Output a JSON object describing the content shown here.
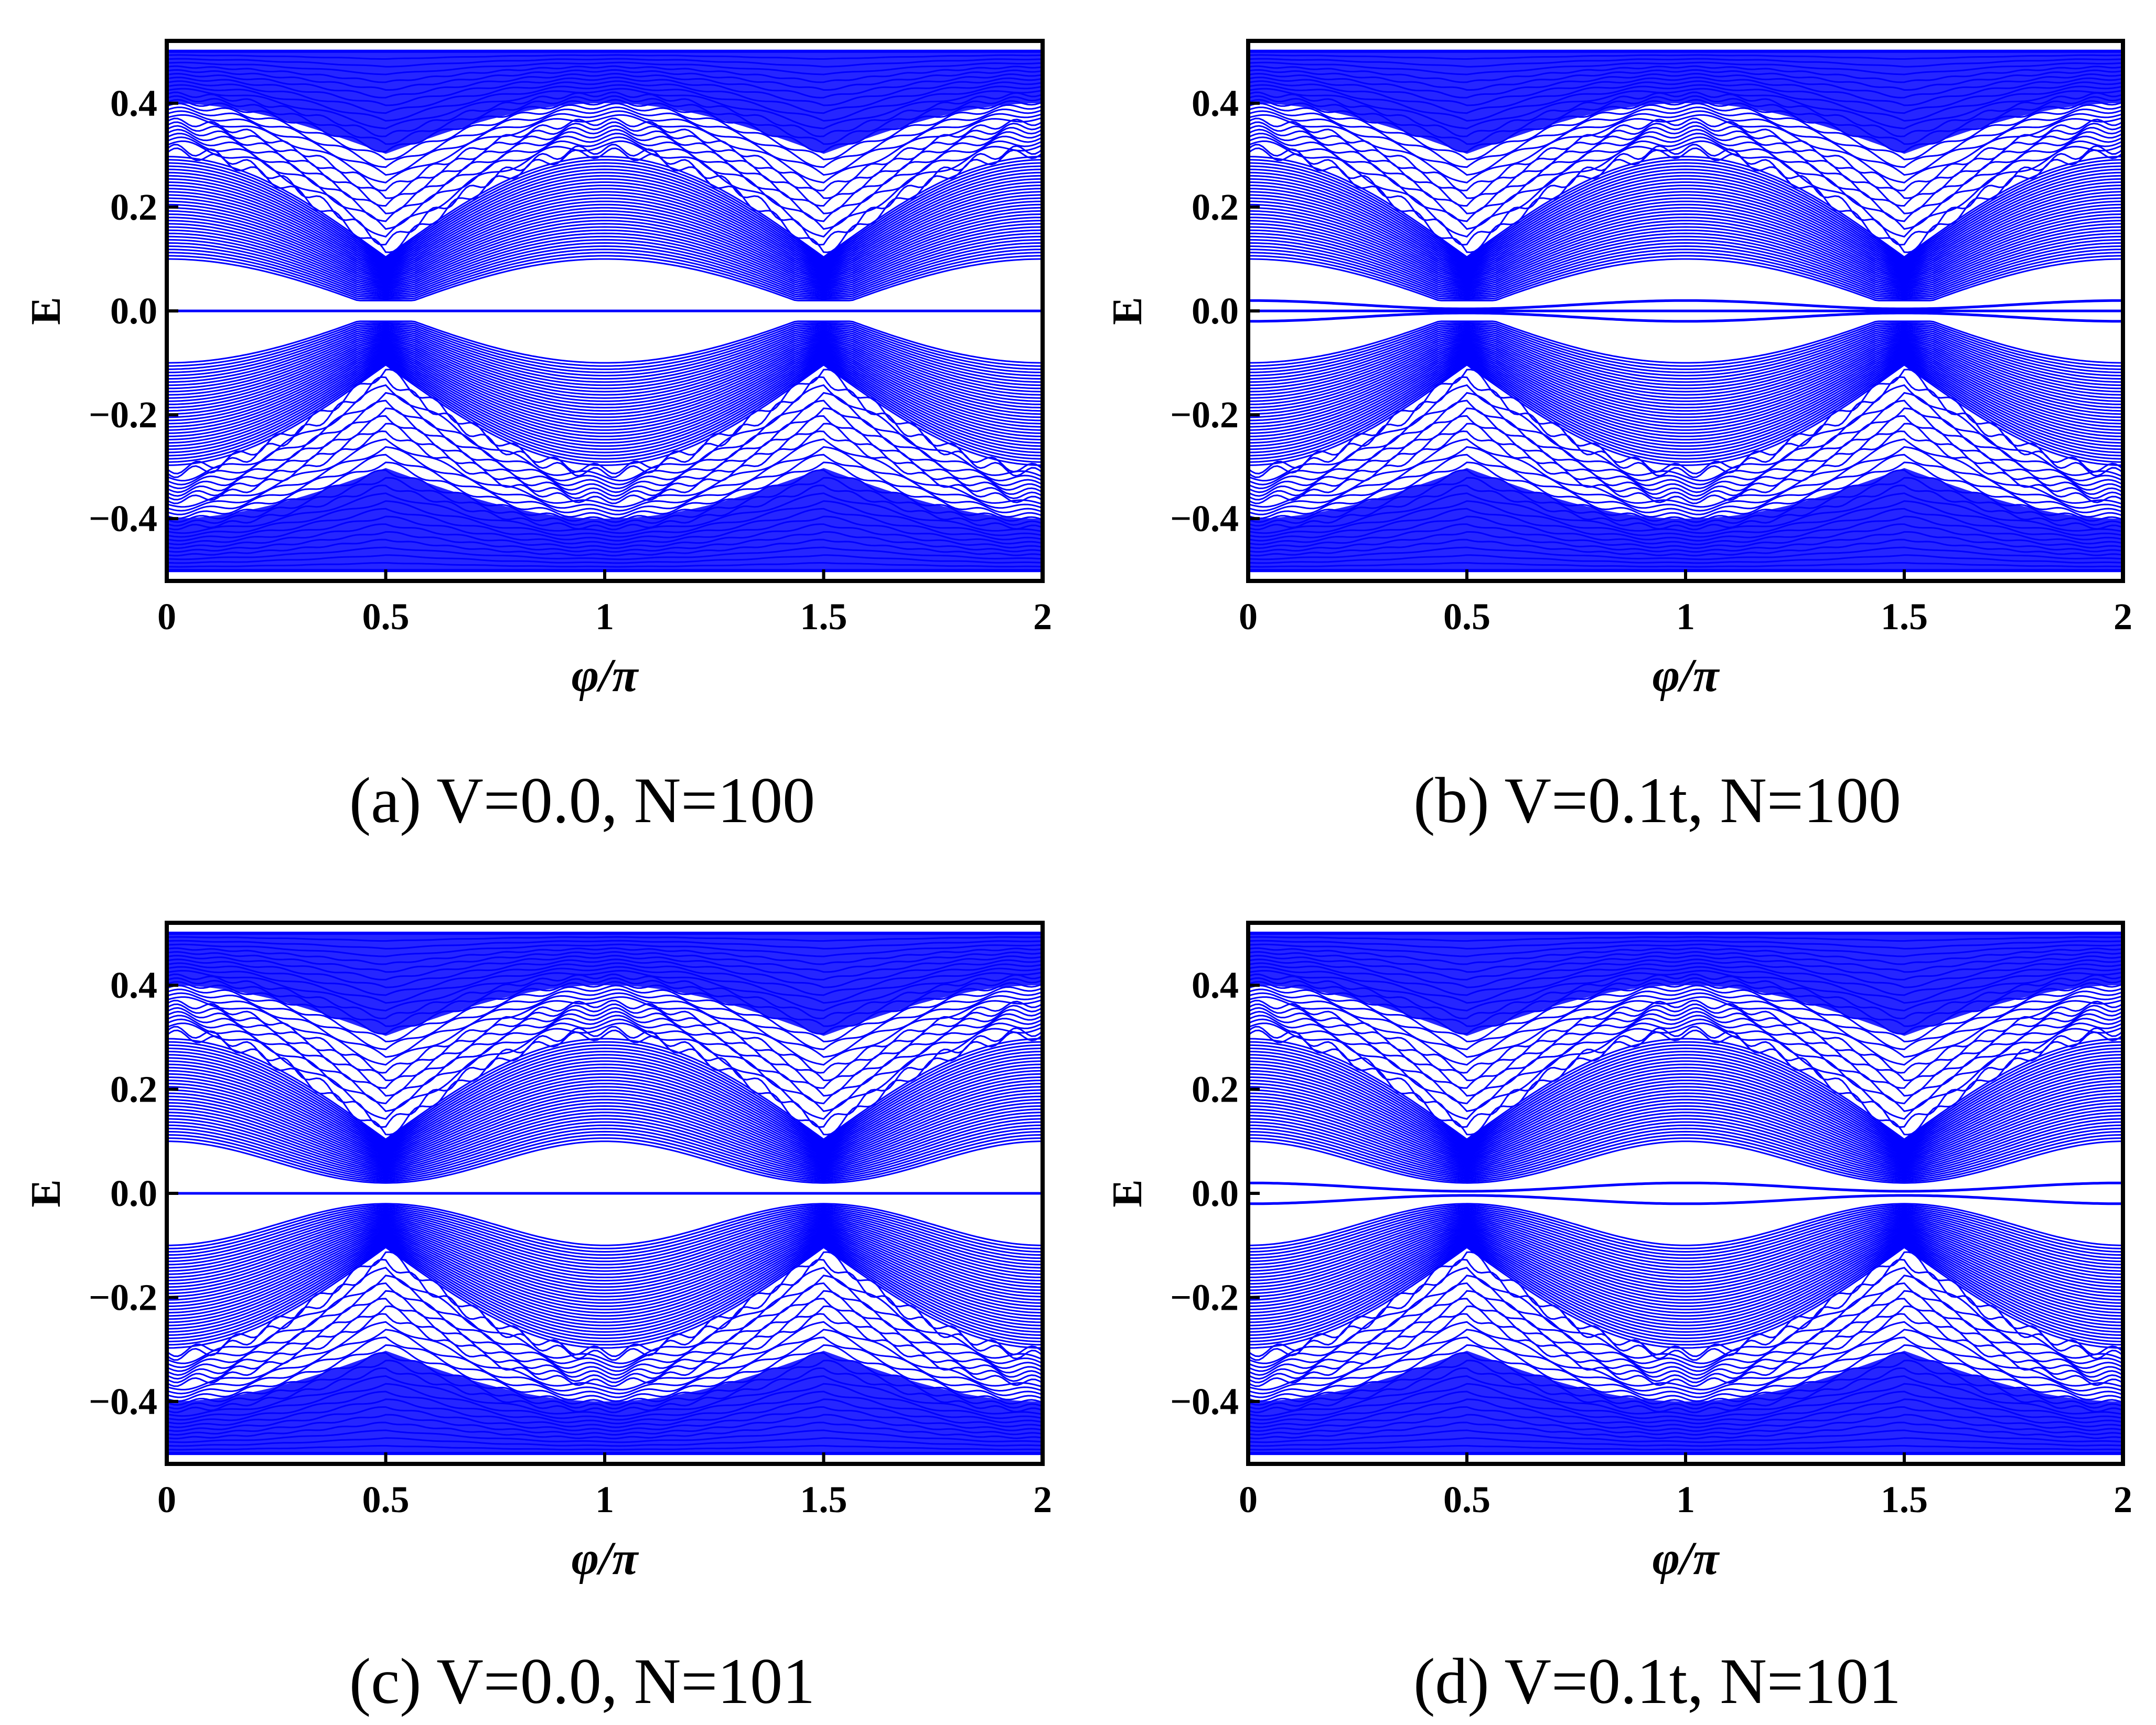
{
  "colors": {
    "curve": "#0000ff",
    "frame": "#000000",
    "background": "#ffffff"
  },
  "chart_data": [
    {
      "panel": "a",
      "type": "line",
      "caption": "(a) V=0.0, N=100",
      "xlabel": "φ/π",
      "ylabel": "E",
      "xlim": [
        0,
        2
      ],
      "ylim": [
        -0.52,
        0.52
      ],
      "xticks": [
        0,
        0.5,
        1,
        1.5,
        2
      ],
      "xtick_labels": [
        "0",
        "0.5",
        "1",
        "1.5",
        "2"
      ],
      "yticks": [
        0.4,
        0.2,
        0.0,
        -0.2,
        -0.4
      ],
      "ytick_labels": [
        "0.4",
        "0.2",
        "0.0",
        "−0.2",
        "−0.4"
      ],
      "params": {
        "V": 0.0,
        "N": 100,
        "edge_states": [
          0.0
        ],
        "gap_scale": 1.0,
        "gap_half": false
      },
      "band_edge": {
        "inner_max": 0.1,
        "inner_min": 0.02,
        "outer_max": 0.3,
        "top": 0.5,
        "crossings": [
          0.5,
          1.5
        ]
      }
    },
    {
      "panel": "b",
      "type": "line",
      "caption": "(b) V=0.1t, N=100",
      "xlabel": "φ/π",
      "ylabel": "E",
      "xlim": [
        0,
        2
      ],
      "ylim": [
        -0.52,
        0.52
      ],
      "xticks": [
        0,
        0.5,
        1,
        1.5,
        2
      ],
      "xtick_labels": [
        "0",
        "0.5",
        "1",
        "1.5",
        "2"
      ],
      "yticks": [
        0.4,
        0.2,
        0.0,
        -0.2,
        -0.4
      ],
      "ytick_labels": [
        "0.4",
        "0.2",
        "0.0",
        "−0.2",
        "−0.4"
      ],
      "params": {
        "V": 0.1,
        "N": 100,
        "edge_states": [
          0.02,
          -0.02,
          0.0
        ],
        "gap_scale": 1.0,
        "gap_half": false
      },
      "band_edge": {
        "inner_max": 0.1,
        "inner_min": 0.02,
        "outer_max": 0.3,
        "top": 0.5,
        "crossings": [
          0.5,
          1.5
        ]
      }
    },
    {
      "panel": "c",
      "type": "line",
      "caption": "(c) V=0.0, N=101",
      "xlabel": "φ/π",
      "ylabel": "E",
      "xlim": [
        0,
        2
      ],
      "ylim": [
        -0.52,
        0.52
      ],
      "xticks": [
        0,
        0.5,
        1,
        1.5,
        2
      ],
      "xtick_labels": [
        "0",
        "0.5",
        "1",
        "1.5",
        "2"
      ],
      "yticks": [
        0.4,
        0.2,
        0.0,
        -0.2,
        -0.4
      ],
      "ytick_labels": [
        "0.4",
        "0.2",
        "0.0",
        "−0.2",
        "−0.4"
      ],
      "params": {
        "V": 0.0,
        "N": 101,
        "edge_states": [
          0.0
        ],
        "gap_scale": 1.0,
        "gap_half": true
      },
      "band_edge": {
        "inner_max": 0.1,
        "inner_min": 0.02,
        "outer_max": 0.3,
        "top": 0.5,
        "crossings": [
          0.5,
          1.5
        ]
      }
    },
    {
      "panel": "d",
      "type": "line",
      "caption": "(d) V=0.1t, N=101",
      "xlabel": "φ/π",
      "ylabel": "E",
      "xlim": [
        0,
        2
      ],
      "ylim": [
        -0.52,
        0.52
      ],
      "xticks": [
        0,
        0.5,
        1,
        1.5,
        2
      ],
      "xtick_labels": [
        "0",
        "0.5",
        "1",
        "1.5",
        "2"
      ],
      "yticks": [
        0.4,
        0.2,
        0.0,
        -0.2,
        -0.4
      ],
      "ytick_labels": [
        "0.4",
        "0.2",
        "0.0",
        "−0.2",
        "−0.4"
      ],
      "params": {
        "V": 0.1,
        "N": 101,
        "edge_states": [
          0.02,
          -0.02
        ],
        "gap_scale": 1.0,
        "gap_half": true
      },
      "band_edge": {
        "inner_max": 0.1,
        "inner_min": 0.02,
        "outer_max": 0.3,
        "top": 0.5,
        "crossings": [
          0.5,
          1.5
        ]
      }
    }
  ]
}
